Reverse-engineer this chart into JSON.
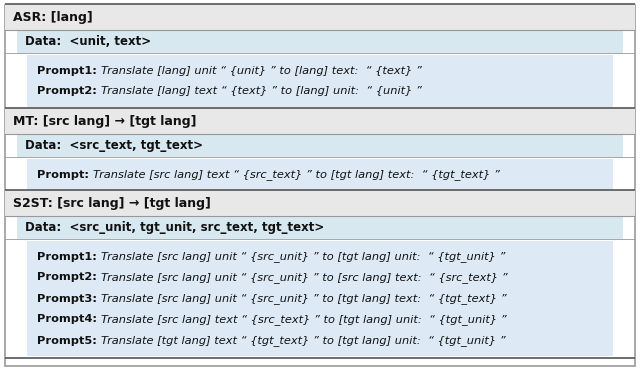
{
  "sections": [
    {
      "header": "ASR: [lang]",
      "data_label": "Data:  <unit, text>",
      "prompts": [
        [
          "Prompt1",
          ": ",
          "Translate [lang] unit “ {unit} ” to [lang] text:  “ {text} ”"
        ],
        [
          "Prompt2",
          ": ",
          "Translate [lang] text “ {text} ” to [lang] unit:  “ {unit} ”"
        ]
      ]
    },
    {
      "header": "MT: [src lang] → [tgt lang]",
      "data_label": "Data:  <src_text, tgt_text>",
      "prompts": [
        [
          "Prompt",
          ": ",
          "Translate [src lang] text “ {src_text} ” to [tgt lang] text:  “ {tgt_text} ”"
        ]
      ]
    },
    {
      "header": "S2ST: [src lang] → [tgt lang]",
      "data_label": "Data:  <src_unit, tgt_unit, src_text, tgt_text>",
      "prompts": [
        [
          "Prompt1",
          ": ",
          "Translate [src lang] unit “ {src_unit} ” to [tgt lang] unit:  “ {tgt_unit} ”"
        ],
        [
          "Prompt2",
          ": ",
          "Translate [src lang] unit “ {src_unit} ” to [src lang] text:  “ {src_text} ”"
        ],
        [
          "Prompt3",
          ": ",
          "Translate [src lang] unit “ {src_unit} ” to [tgt lang] text:  “ {tgt_text} ”"
        ],
        [
          "Prompt4",
          ": ",
          "Translate [src lang] text “ {src_text} ” to [tgt lang] unit:  “ {tgt_unit} ”"
        ],
        [
          "Prompt5",
          ": ",
          "Translate [tgt lang] text “ {tgt_text} ” to [tgt lang] unit:  “ {tgt_unit} ”"
        ]
      ]
    }
  ],
  "color_header_bg": "#e8e8e8",
  "color_data_bg": "#d8e8f0",
  "color_prompt_bg": "#ddeaf5",
  "color_border": "#999999",
  "color_border_dark": "#555555",
  "font_size_header": 9.0,
  "font_size_data": 8.5,
  "font_size_prompt": 8.2
}
